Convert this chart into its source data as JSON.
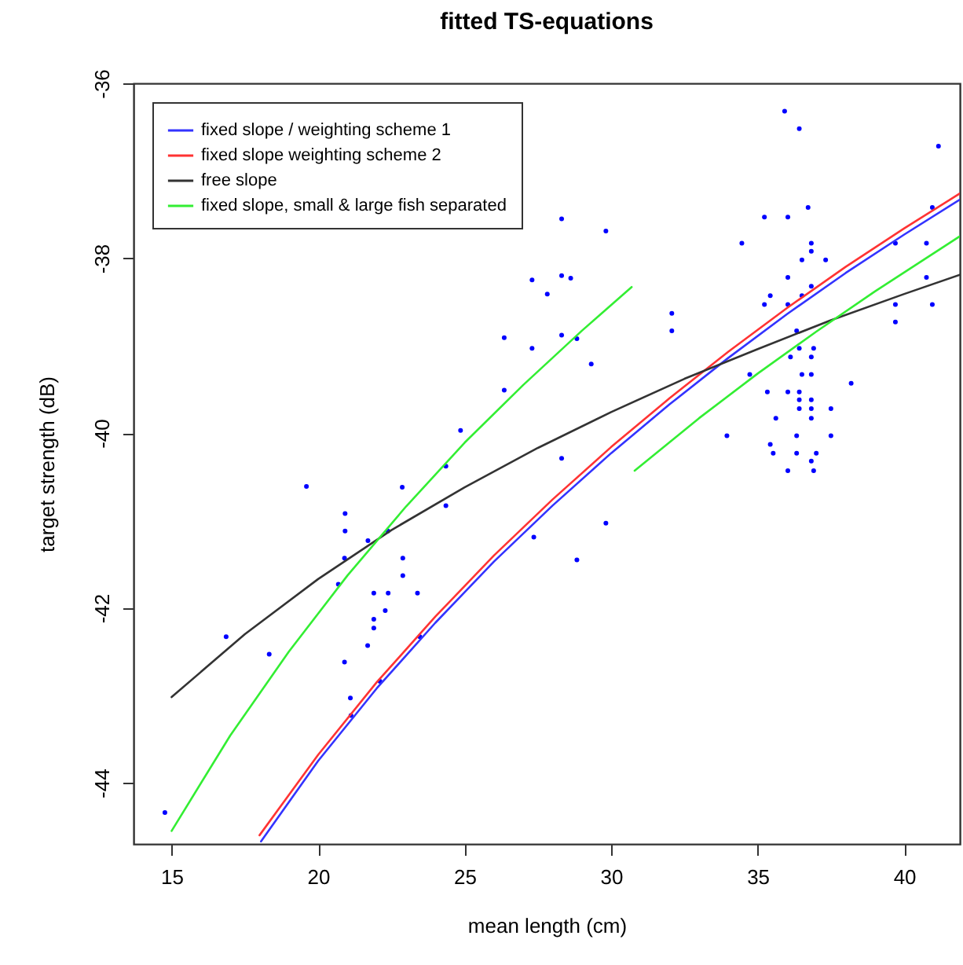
{
  "chart_data": {
    "type": "line",
    "title": "fitted TS-equations",
    "xlabel": "mean length (cm)",
    "ylabel": "target strength (dB)",
    "xlim": [
      13.7,
      41.9
    ],
    "ylim": [
      -44.7,
      -36
    ],
    "xticks": [
      15,
      20,
      25,
      30,
      35,
      40
    ],
    "yticks": [
      -44,
      -42,
      -40,
      -38,
      -36
    ],
    "legend": "top left",
    "series": [
      {
        "type": "scatter",
        "marker": "circle",
        "color": "#0000ff",
        "x": [
          14.77,
          16.86,
          18.33,
          19.6,
          20.69,
          20.9,
          20.9,
          20.92,
          20.92,
          21.1,
          21.12,
          21.69,
          21.7,
          21.9,
          21.9,
          21.9,
          22.11,
          22.29,
          22.38,
          22.39,
          22.87,
          22.89,
          22.89,
          23.39,
          23.47,
          24.36,
          24.36,
          24.86,
          26.35,
          26.35,
          27.3,
          27.3,
          27.36,
          27.82,
          28.31,
          28.31,
          28.31,
          28.31,
          28.62,
          28.83,
          28.83,
          29.32,
          29.82,
          29.82,
          32.07,
          32.07,
          33.95,
          34.46,
          34.73,
          35.23,
          35.23,
          35.33,
          35.43,
          35.43,
          35.53,
          35.62,
          35.92,
          36.03,
          36.03,
          36.03,
          36.03,
          36.03,
          36.12,
          36.33,
          36.33,
          36.33,
          36.42,
          36.42,
          36.42,
          36.42,
          36.42,
          36.51,
          36.51,
          36.51,
          36.72,
          36.83,
          36.83,
          36.83,
          36.83,
          36.83,
          36.83,
          36.83,
          36.83,
          36.83,
          36.91,
          36.91,
          37.0,
          37.32,
          37.5,
          37.5,
          38.19,
          39.7,
          39.7,
          39.7,
          40.76,
          40.76,
          40.96,
          40.96,
          41.17
        ],
        "values": [
          -44.34,
          -42.33,
          -42.53,
          -40.61,
          -41.73,
          -41.43,
          -42.62,
          -40.92,
          -41.12,
          -43.03,
          -43.23,
          -42.43,
          -41.23,
          -41.83,
          -42.13,
          -42.23,
          -42.84,
          -42.03,
          -41.12,
          -41.83,
          -40.62,
          -41.43,
          -41.63,
          -41.83,
          -42.33,
          -40.38,
          -40.83,
          -39.97,
          -38.91,
          -39.51,
          -38.25,
          -39.03,
          -41.19,
          -38.41,
          -37.55,
          -38.2,
          -38.88,
          -40.29,
          -38.23,
          -38.92,
          -41.45,
          -39.21,
          -37.69,
          -41.03,
          -38.63,
          -38.83,
          -40.03,
          -37.83,
          -39.33,
          -37.53,
          -38.53,
          -39.53,
          -38.43,
          -40.13,
          -40.23,
          -39.83,
          -36.32,
          -37.53,
          -38.22,
          -38.53,
          -39.53,
          -40.43,
          -39.13,
          -38.83,
          -40.03,
          -40.23,
          -36.52,
          -39.03,
          -39.53,
          -39.62,
          -39.72,
          -38.02,
          -38.43,
          -39.33,
          -37.42,
          -37.83,
          -37.92,
          -38.32,
          -39.13,
          -39.33,
          -39.62,
          -39.72,
          -39.83,
          -40.32,
          -39.03,
          -40.43,
          -40.23,
          -38.02,
          -39.72,
          -40.03,
          -39.43,
          -37.83,
          -38.53,
          -38.73,
          -37.83,
          -38.22,
          -37.42,
          -38.53,
          -36.72
        ]
      },
      {
        "name": "fixed slope / weighting scheme 1",
        "color": "#3333ff",
        "x": [
          18.05,
          20,
          22,
          24,
          26,
          28,
          30,
          32,
          34,
          36,
          38,
          40,
          41.9
        ],
        "values": [
          -44.67,
          -43.75,
          -42.92,
          -42.17,
          -41.47,
          -40.83,
          -40.23,
          -39.67,
          -39.14,
          -38.64,
          -38.17,
          -37.73,
          -37.33
        ]
      },
      {
        "name": "fixed slope weighting scheme 2",
        "color": "#ff3333",
        "x": [
          18,
          20,
          22,
          24,
          26,
          28,
          30,
          32,
          34,
          36,
          38,
          40,
          41.9
        ],
        "values": [
          -44.6,
          -43.68,
          -42.85,
          -42.1,
          -41.4,
          -40.76,
          -40.16,
          -39.6,
          -39.07,
          -38.57,
          -38.1,
          -37.66,
          -37.26
        ]
      },
      {
        "name": "free slope",
        "color": "#333333",
        "x": [
          15,
          17.5,
          20,
          22.5,
          25,
          27.5,
          30,
          32.5,
          35,
          37.5,
          40,
          41.9
        ],
        "values": [
          -43.02,
          -42.3,
          -41.67,
          -41.11,
          -40.62,
          -40.17,
          -39.76,
          -39.38,
          -39.04,
          -38.71,
          -38.41,
          -38.19
        ]
      },
      {
        "name": "fixed slope, small & large fish separated",
        "color": "#33ee33",
        "x": [
          15,
          17,
          19,
          21,
          23,
          25,
          27,
          29,
          30.7
        ],
        "values": [
          -44.55,
          -43.46,
          -42.5,
          -41.63,
          -40.84,
          -40.11,
          -39.45,
          -38.83,
          -38.33
        ]
      },
      {
        "color": "#33ee33",
        "x": [
          30.8,
          33,
          35,
          37,
          39,
          41.9
        ],
        "values": [
          -40.43,
          -39.83,
          -39.32,
          -38.84,
          -38.38,
          -37.75
        ]
      }
    ]
  }
}
